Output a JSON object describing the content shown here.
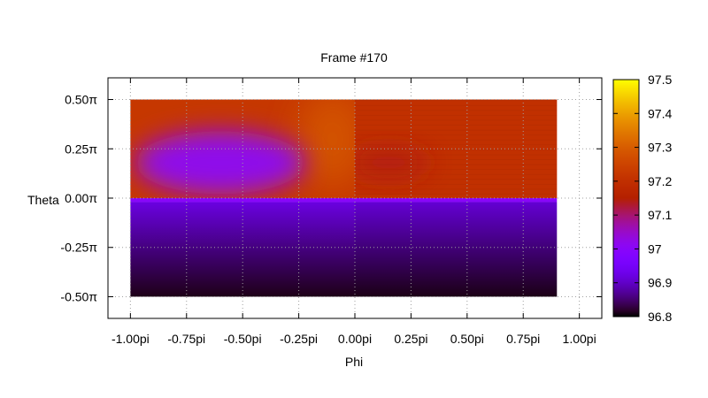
{
  "chart_data": {
    "type": "heatmap",
    "title": "Frame #170",
    "xlabel": "Phi",
    "ylabel": "Theta",
    "x_range": [
      -1.1,
      1.1
    ],
    "y_range": [
      -0.61,
      0.61
    ],
    "data_extent": {
      "x": [
        -1.0,
        0.9
      ],
      "y": [
        -0.5,
        0.5
      ]
    },
    "x_ticks": [
      {
        "value": -1.0,
        "label": "-1.00pi"
      },
      {
        "value": -0.75,
        "label": "-0.75pi"
      },
      {
        "value": -0.5,
        "label": "-0.50pi"
      },
      {
        "value": -0.25,
        "label": "-0.25pi"
      },
      {
        "value": 0.0,
        "label": "0.00pi"
      },
      {
        "value": 0.25,
        "label": "0.25pi"
      },
      {
        "value": 0.5,
        "label": "0.50pi"
      },
      {
        "value": 0.75,
        "label": "0.75pi"
      },
      {
        "value": 1.0,
        "label": "1.00pi"
      }
    ],
    "y_ticks": [
      {
        "value": 0.5,
        "label": "0.50π"
      },
      {
        "value": 0.25,
        "label": "0.25π"
      },
      {
        "value": 0.0,
        "label": "0.00π"
      },
      {
        "value": -0.25,
        "label": "-0.25π"
      },
      {
        "value": -0.5,
        "label": "-0.50π"
      }
    ],
    "grid": true,
    "colorbar": {
      "min": 96.8,
      "max": 97.5,
      "palette": "gnuplot-pm3d",
      "ticks": [
        {
          "value": 97.5,
          "label": "97.5"
        },
        {
          "value": 97.4,
          "label": "97.4"
        },
        {
          "value": 97.3,
          "label": "97.3"
        },
        {
          "value": 97.2,
          "label": "97.2"
        },
        {
          "value": 97.1,
          "label": "97.1"
        },
        {
          "value": 97.0,
          "label": "97"
        },
        {
          "value": 96.9,
          "label": "96.9"
        },
        {
          "value": 96.8,
          "label": "96.8"
        }
      ]
    },
    "regions": [
      {
        "id": "upper-background",
        "x": [
          -1.0,
          0.9
        ],
        "y": [
          0.0,
          0.5
        ],
        "value": 97.22
      },
      {
        "id": "upper-right-patch",
        "x": [
          0.0,
          0.9
        ],
        "y": [
          0.0,
          0.5
        ],
        "value": 97.2
      },
      {
        "id": "upper-left-cool-blob",
        "center": [
          -0.6,
          0.18
        ],
        "radius": [
          0.38,
          0.16
        ],
        "value": 97.02
      },
      {
        "id": "upper-middle-warm-band",
        "center": [
          -0.1,
          0.3
        ],
        "radius": [
          0.15,
          0.25
        ],
        "value": 97.28
      },
      {
        "id": "upper-right-cool-spot",
        "center": [
          0.15,
          0.18
        ],
        "radius": [
          0.18,
          0.08
        ],
        "value": 97.14
      },
      {
        "id": "boundary-line",
        "x": [
          -1.0,
          0.9
        ],
        "y": [
          -0.02,
          0.0
        ],
        "value": 97.0
      },
      {
        "id": "lower-gradient",
        "x": [
          -1.0,
          0.9
        ],
        "y": [
          -0.5,
          -0.02
        ],
        "value_top": 96.92,
        "value_bottom": 96.81
      }
    ]
  }
}
